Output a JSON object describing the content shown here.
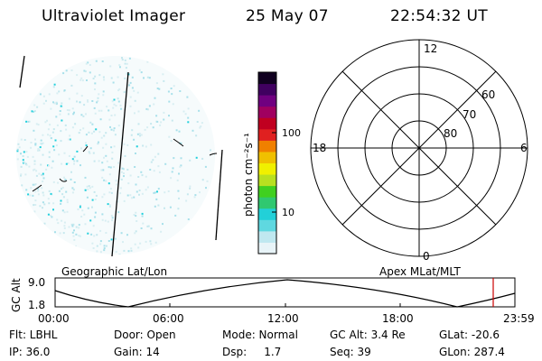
{
  "header": {
    "title": "Ultraviolet Imager",
    "date": "25 May 07",
    "time": "22:54:32 UT"
  },
  "colorbar": {
    "unit_label": "photon cm⁻²s⁻¹",
    "tick_100": "100",
    "tick_10": "10",
    "colors": [
      "#e8f4f8",
      "#bfe8f0",
      "#5fd8e0",
      "#22d0d8",
      "#30c870",
      "#40d020",
      "#b8e020",
      "#f0f000",
      "#f0c000",
      "#f08000",
      "#e02020",
      "#c00020",
      "#a00060",
      "#700080",
      "#400060",
      "#100020"
    ]
  },
  "polar": {
    "mlt_top": "12",
    "mlt_left": "18",
    "mlt_right": "6",
    "mlt_bottom": "0",
    "lat_60": "60",
    "lat_70": "70",
    "lat_80": "80"
  },
  "timeline": {
    "left_label": "Geographic Lat/Lon",
    "right_label": "Apex MLat/MLT",
    "axis_label": "GC Alt",
    "y_max": "9.0",
    "y_min": "1.8",
    "ticks": [
      "00:00",
      "06:00",
      "12:00",
      "18:00",
      "23:59"
    ],
    "current_marker_color": "#cc0000"
  },
  "status": {
    "flt": "Flt: LBHL",
    "ip": "IP: 36.0",
    "door": "Door: Open",
    "gain": "Gain: 14",
    "mode": "Mode: Normal",
    "dsp": "Dsp:     1.7",
    "gcalt": "GC Alt: 3.4 Re",
    "seq": "Seq: 39",
    "glat": "GLat: -20.6",
    "glon": "GLon: 287.4"
  }
}
